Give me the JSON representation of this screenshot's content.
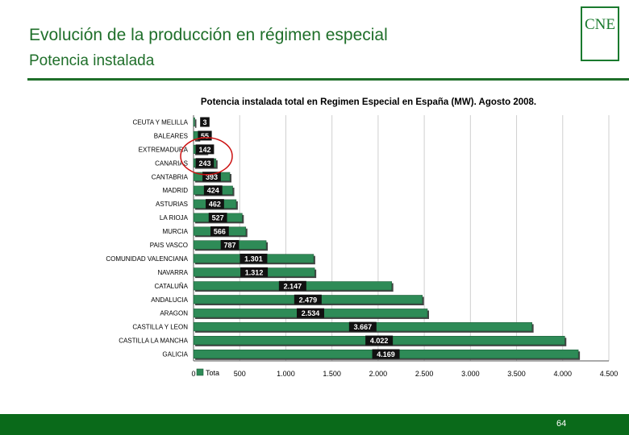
{
  "header": {
    "title": "Evolución de la producción en régimen especial",
    "subtitle": "Potencia instalada",
    "logo_text": "CNE"
  },
  "footer": {
    "page_number": "64"
  },
  "colors": {
    "brand_green": "#1f6f2a",
    "bar_fill": "#2e8b57",
    "highlight_circle": "#cc1111"
  },
  "chart_data": {
    "type": "bar",
    "orientation": "horizontal",
    "title": "Potencia instalada total en Regimen Especial en España (MW). Agosto 2008.",
    "categories": [
      "CEUTA Y MELILLA",
      "BALEARES",
      "EXTREMADURA",
      "CANARIAS",
      "CANTABRIA",
      "MADRID",
      "ASTURIAS",
      "LA RIOJA",
      "MURCIA",
      "PAIS VASCO",
      "COMUNIDAD VALENCIANA",
      "NAVARRA",
      "CATALUÑA",
      "ANDALUCIA",
      "ARAGON",
      "CASTILLA Y LEON",
      "CASTILLA LA MANCHA",
      "GALICIA"
    ],
    "value_labels": [
      "3",
      "55",
      "142",
      "243",
      "393",
      "424",
      "462",
      "527",
      "566",
      "787",
      "1.301",
      "1.312",
      "2.147",
      "2.479",
      "2.534",
      "3.667",
      "4.022",
      "4.169"
    ],
    "series": [
      {
        "name": "Tota",
        "values": [
          3,
          55,
          142,
          243,
          393,
          424,
          462,
          527,
          566,
          787,
          1301,
          1312,
          2147,
          2479,
          2534,
          3667,
          4022,
          4169
        ]
      }
    ],
    "x_ticks": [
      0,
      500,
      1000,
      1500,
      2000,
      2500,
      3000,
      3500,
      4000,
      4500
    ],
    "x_tick_labels": [
      "0",
      "500",
      "1.000",
      "1.500",
      "2.000",
      "2.500",
      "3.000",
      "3.500",
      "4.000",
      "4.500"
    ],
    "xlim": [
      0,
      4500
    ],
    "grid": true,
    "legend": "bottom-left",
    "highlighted_categories": [
      "EXTREMADURA",
      "CANARIAS"
    ]
  }
}
